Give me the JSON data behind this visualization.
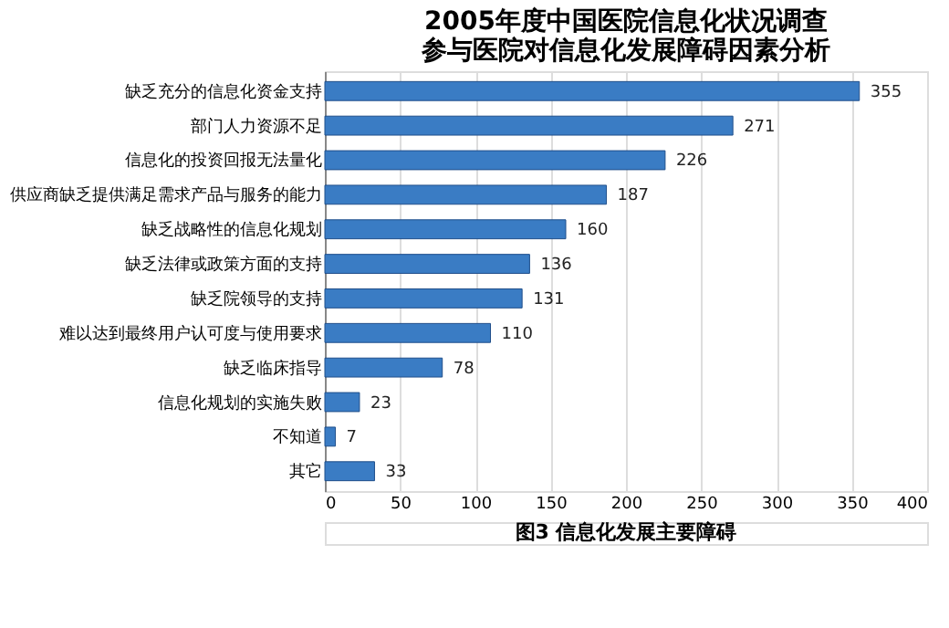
{
  "chart_data": {
    "type": "bar",
    "orientation": "horizontal",
    "title": [
      "2005年度中国医院信息化状况调查",
      "参与医院对信息化发展障碍因素分析"
    ],
    "categories": [
      "缺乏充分的信息化资金支持",
      "部门人力资源不足",
      "信息化的投资回报无法量化",
      "供应商缺乏提供满足需求产品与服务的能力",
      "缺乏战略性的信息化规划",
      "缺乏法律或政策方面的支持",
      "缺乏院领导的支持",
      "难以达到最终用户认可度与使用要求",
      "缺乏临床指导",
      "信息化规划的实施失败",
      "不知道",
      "其它"
    ],
    "values": [
      355,
      271,
      226,
      187,
      160,
      136,
      131,
      110,
      78,
      23,
      7,
      33
    ],
    "color": "#3a7cc4",
    "xlim": [
      0,
      400
    ],
    "xticks": [
      0,
      50,
      100,
      150,
      200,
      250,
      300,
      350,
      400
    ],
    "grid": "x",
    "data_labels": true,
    "annotations": [
      "图3  信息化发展主要障碍"
    ]
  }
}
